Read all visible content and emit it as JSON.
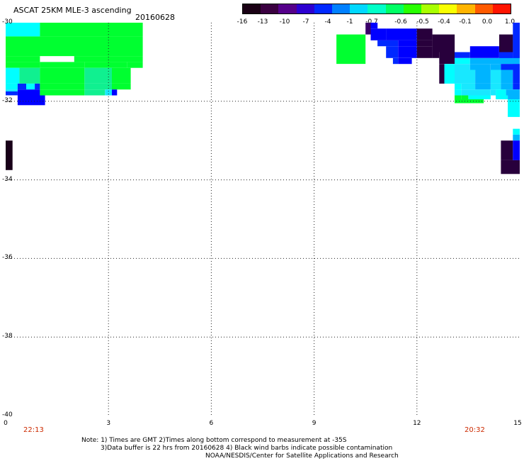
{
  "header": {
    "title": "ASCAT 25KM MLE-3 ascending",
    "date": "20160628"
  },
  "colorbar": {
    "labels": [
      "-16",
      "-13",
      "-10",
      "-7",
      "-4",
      "-1",
      "-0.7",
      "-0.6",
      "-0.5",
      "-0.4",
      "-0.1",
      "0.0",
      "1.0"
    ],
    "colors": [
      "#1a0014",
      "#3a0040",
      "#55008a",
      "#2c00d0",
      "#0028ff",
      "#0080ff",
      "#00d8ff",
      "#00ffc8",
      "#00ff64",
      "#28ff00",
      "#a8ff00",
      "#f8ff00",
      "#ffb400",
      "#ff5a00",
      "#ff1400"
    ]
  },
  "map": {
    "lat_range": [
      -40,
      -30
    ],
    "lon_range": [
      0,
      15
    ],
    "lat_labels": [
      "-30",
      "-32",
      "-34",
      "-36",
      "-38",
      "-40"
    ],
    "lon_labels": [
      "0",
      "3",
      "6",
      "9",
      "12",
      "15"
    ],
    "grid": "dotted",
    "time_left": "22:13",
    "time_right": "20:32",
    "colors": {
      "green": "#00ff30",
      "mint": "#10f090",
      "cyan": "#00ffff",
      "lightcyan": "#18e8ff",
      "skyblue": "#00b4ff",
      "blue": "#0028ff",
      "deepblue": "#0000ff",
      "purple": "#3a006a",
      "darkpurple": "#28003c",
      "nearblack": "#180018"
    },
    "cells": [
      {
        "lon": [
          0,
          1.0
        ],
        "lat": [
          -30.0,
          -30.35
        ],
        "color": "cyan"
      },
      {
        "lon": [
          1.0,
          4.0
        ],
        "lat": [
          -30.0,
          -30.35
        ],
        "color": "green"
      },
      {
        "lon": [
          0,
          4.0
        ],
        "lat": [
          -30.35,
          -30.85
        ],
        "color": "green"
      },
      {
        "lon": [
          0,
          1.0
        ],
        "lat": [
          -30.85,
          -31.0
        ],
        "color": "green"
      },
      {
        "lon": [
          2.0,
          4.0
        ],
        "lat": [
          -30.85,
          -31.0
        ],
        "color": "green"
      },
      {
        "lon": [
          0,
          1.0
        ],
        "lat": [
          -31.0,
          -31.15
        ],
        "color": "green"
      },
      {
        "lon": [
          1.0,
          2.3
        ],
        "lat": [
          -31.0,
          -31.15
        ],
        "color": "green"
      },
      {
        "lon": [
          2.3,
          3.55
        ],
        "lat": [
          -31.0,
          -31.15
        ],
        "color": "green"
      },
      {
        "lon": [
          3.55,
          4.0
        ],
        "lat": [
          -31.0,
          -31.15
        ],
        "color": "green"
      },
      {
        "lon": [
          0,
          0.4
        ],
        "lat": [
          -31.15,
          -31.55
        ],
        "color": "cyan"
      },
      {
        "lon": [
          0.4,
          1.0
        ],
        "lat": [
          -31.15,
          -31.55
        ],
        "color": "mint"
      },
      {
        "lon": [
          1.0,
          2.3
        ],
        "lat": [
          -31.15,
          -31.55
        ],
        "color": "green"
      },
      {
        "lon": [
          2.3,
          3.1
        ],
        "lat": [
          -31.15,
          -31.55
        ],
        "color": "mint"
      },
      {
        "lon": [
          3.1,
          3.65
        ],
        "lat": [
          -31.15,
          -31.55
        ],
        "color": "green"
      },
      {
        "lon": [
          0,
          0.35
        ],
        "lat": [
          -31.55,
          -31.7
        ],
        "color": "cyan"
      },
      {
        "lon": [
          0.35,
          0.6
        ],
        "lat": [
          -31.55,
          -31.7
        ],
        "color": "blue"
      },
      {
        "lon": [
          0.6,
          0.85
        ],
        "lat": [
          -31.55,
          -31.7
        ],
        "color": "cyan"
      },
      {
        "lon": [
          0.85,
          1.0
        ],
        "lat": [
          -31.55,
          -31.7
        ],
        "color": "blue"
      },
      {
        "lon": [
          1.0,
          2.3
        ],
        "lat": [
          -31.55,
          -31.7
        ],
        "color": "green"
      },
      {
        "lon": [
          2.3,
          3.1
        ],
        "lat": [
          -31.55,
          -31.7
        ],
        "color": "mint"
      },
      {
        "lon": [
          3.1,
          3.65
        ],
        "lat": [
          -31.55,
          -31.7
        ],
        "color": "green"
      },
      {
        "lon": [
          0,
          0.35
        ],
        "lat": [
          -31.7,
          -31.75
        ],
        "color": "lightcyan"
      },
      {
        "lon": [
          0,
          0.35
        ],
        "lat": [
          -31.75,
          -31.85
        ],
        "color": "blue"
      },
      {
        "lon": [
          0.35,
          1.0
        ],
        "lat": [
          -31.7,
          -31.85
        ],
        "color": "deepblue"
      },
      {
        "lon": [
          1.0,
          2.3
        ],
        "lat": [
          -31.7,
          -31.85
        ],
        "color": "green"
      },
      {
        "lon": [
          2.3,
          2.9
        ],
        "lat": [
          -31.7,
          -31.85
        ],
        "color": "mint"
      },
      {
        "lon": [
          2.9,
          3.1
        ],
        "lat": [
          -31.7,
          -31.85
        ],
        "color": "lightcyan"
      },
      {
        "lon": [
          3.1,
          3.25
        ],
        "lat": [
          -31.7,
          -31.85
        ],
        "color": "deepblue"
      },
      {
        "lon": [
          0.35,
          1.15
        ],
        "lat": [
          -31.85,
          -32.1
        ],
        "color": "deepblue"
      },
      {
        "lon": [
          0,
          0.2
        ],
        "lat": [
          -33.0,
          -33.75
        ],
        "color": "nearblack"
      },
      {
        "lon": [
          9.65,
          10.5
        ],
        "lat": [
          -30.3,
          -31.05
        ],
        "color": "green"
      },
      {
        "lon": [
          10.5,
          10.65
        ],
        "lat": [
          -30.0,
          -30.3
        ],
        "color": "purple"
      },
      {
        "lon": [
          10.65,
          10.85
        ],
        "lat": [
          -30.0,
          -30.15
        ],
        "color": "deepblue"
      },
      {
        "lon": [
          10.65,
          11.1
        ],
        "lat": [
          -30.15,
          -30.45
        ],
        "color": "deepblue"
      },
      {
        "lon": [
          11.1,
          12.0
        ],
        "lat": [
          -30.15,
          -30.45
        ],
        "color": "deepblue"
      },
      {
        "lon": [
          12.0,
          12.45
        ],
        "lat": [
          -30.15,
          -30.45
        ],
        "color": "darkpurple"
      },
      {
        "lon": [
          10.85,
          11.45
        ],
        "lat": [
          -30.45,
          -30.6
        ],
        "color": "blue"
      },
      {
        "lon": [
          11.45,
          12.0
        ],
        "lat": [
          -30.45,
          -30.6
        ],
        "color": "deepblue"
      },
      {
        "lon": [
          12.0,
          12.45
        ],
        "lat": [
          -30.45,
          -30.6
        ],
        "color": "darkpurple"
      },
      {
        "lon": [
          12.45,
          13.1
        ],
        "lat": [
          -30.3,
          -30.75
        ],
        "color": "darkpurple"
      },
      {
        "lon": [
          11.1,
          11.45
        ],
        "lat": [
          -30.6,
          -30.9
        ],
        "color": "blue"
      },
      {
        "lon": [
          11.45,
          12.0
        ],
        "lat": [
          -30.6,
          -30.9
        ],
        "color": "deepblue"
      },
      {
        "lon": [
          12.0,
          12.45
        ],
        "lat": [
          -30.6,
          -30.9
        ],
        "color": "darkpurple"
      },
      {
        "lon": [
          12.45,
          12.65
        ],
        "lat": [
          -30.75,
          -30.9
        ],
        "color": "darkpurple"
      },
      {
        "lon": [
          11.3,
          11.45
        ],
        "lat": [
          -30.9,
          -31.05
        ],
        "color": "blue"
      },
      {
        "lon": [
          11.45,
          11.85
        ],
        "lat": [
          -30.9,
          -31.05
        ],
        "color": "deepblue"
      },
      {
        "lon": [
          12.65,
          13.1
        ],
        "lat": [
          -30.75,
          -31.05
        ],
        "color": "darkpurple"
      },
      {
        "lon": [
          13.1,
          13.55
        ],
        "lat": [
          -30.75,
          -30.9
        ],
        "color": "blue"
      },
      {
        "lon": [
          13.55,
          14.4
        ],
        "lat": [
          -30.6,
          -30.9
        ],
        "color": "deepblue"
      },
      {
        "lon": [
          14.4,
          14.8
        ],
        "lat": [
          -30.3,
          -30.75
        ],
        "color": "darkpurple"
      },
      {
        "lon": [
          14.4,
          14.8
        ],
        "lat": [
          -30.75,
          -31.05
        ],
        "color": "blue"
      },
      {
        "lon": [
          14.8,
          15.0
        ],
        "lat": [
          -30.0,
          -31.05
        ],
        "color": "blue"
      },
      {
        "lon": [
          13.1,
          13.55
        ],
        "lat": [
          -30.9,
          -31.05
        ],
        "color": "cyan"
      },
      {
        "lon": [
          13.55,
          15.0
        ],
        "lat": [
          -30.9,
          -31.05
        ],
        "color": "skyblue"
      },
      {
        "lon": [
          12.65,
          12.8
        ],
        "lat": [
          -31.05,
          -31.2
        ],
        "color": "darkpurple"
      },
      {
        "lon": [
          12.8,
          13.1
        ],
        "lat": [
          -31.05,
          -31.2
        ],
        "color": "cyan"
      },
      {
        "lon": [
          13.1,
          13.55
        ],
        "lat": [
          -31.05,
          -31.2
        ],
        "color": "lightcyan"
      },
      {
        "lon": [
          13.55,
          14.15
        ],
        "lat": [
          -31.05,
          -31.2
        ],
        "color": "skyblue"
      },
      {
        "lon": [
          14.15,
          14.45
        ],
        "lat": [
          -31.05,
          -31.2
        ],
        "color": "skyblue"
      },
      {
        "lon": [
          14.45,
          15.0
        ],
        "lat": [
          -31.05,
          -31.2
        ],
        "color": "blue"
      },
      {
        "lon": [
          12.65,
          12.8
        ],
        "lat": [
          -31.2,
          -31.55
        ],
        "color": "darkpurple"
      },
      {
        "lon": [
          12.8,
          13.1
        ],
        "lat": [
          -31.2,
          -31.55
        ],
        "color": "cyan"
      },
      {
        "lon": [
          13.1,
          13.7
        ],
        "lat": [
          -31.2,
          -31.55
        ],
        "color": "lightcyan"
      },
      {
        "lon": [
          13.7,
          14.15
        ],
        "lat": [
          -31.2,
          -31.55
        ],
        "color": "skyblue"
      },
      {
        "lon": [
          14.15,
          14.45
        ],
        "lat": [
          -31.2,
          -31.55
        ],
        "color": "lightcyan"
      },
      {
        "lon": [
          14.45,
          14.8
        ],
        "lat": [
          -31.2,
          -31.55
        ],
        "color": "skyblue"
      },
      {
        "lon": [
          14.8,
          15.0
        ],
        "lat": [
          -31.2,
          -31.55
        ],
        "color": "blue"
      },
      {
        "lon": [
          13.1,
          13.3
        ],
        "lat": [
          -31.55,
          -31.7
        ],
        "color": "cyan"
      },
      {
        "lon": [
          13.3,
          13.7
        ],
        "lat": [
          -31.55,
          -31.7
        ],
        "color": "lightcyan"
      },
      {
        "lon": [
          13.7,
          14.15
        ],
        "lat": [
          -31.55,
          -31.7
        ],
        "color": "skyblue"
      },
      {
        "lon": [
          14.15,
          14.45
        ],
        "lat": [
          -31.55,
          -31.7
        ],
        "color": "lightcyan"
      },
      {
        "lon": [
          14.45,
          14.8
        ],
        "lat": [
          -31.55,
          -31.7
        ],
        "color": "skyblue"
      },
      {
        "lon": [
          14.8,
          15.0
        ],
        "lat": [
          -31.55,
          -31.7
        ],
        "color": "blue"
      },
      {
        "lon": [
          13.1,
          13.3
        ],
        "lat": [
          -31.7,
          -31.85
        ],
        "color": "cyan"
      },
      {
        "lon": [
          13.3,
          14.15
        ],
        "lat": [
          -31.7,
          -31.85
        ],
        "color": "lightcyan"
      },
      {
        "lon": [
          14.15,
          14.3
        ],
        "lat": [
          -31.7,
          -31.85
        ],
        "color": "lightcyan"
      },
      {
        "lon": [
          14.3,
          14.6
        ],
        "lat": [
          -31.7,
          -31.85
        ],
        "color": "cyan"
      },
      {
        "lon": [
          14.6,
          15.0
        ],
        "lat": [
          -31.7,
          -31.85
        ],
        "color": "skyblue"
      },
      {
        "lon": [
          13.1,
          13.3
        ],
        "lat": [
          -31.85,
          -31.95
        ],
        "color": "green"
      },
      {
        "lon": [
          13.3,
          13.5
        ],
        "lat": [
          -31.85,
          -31.95
        ],
        "color": "green"
      },
      {
        "lon": [
          13.5,
          14.15
        ],
        "lat": [
          -31.85,
          -31.95
        ],
        "color": "cyan"
      },
      {
        "lon": [
          14.3,
          14.65
        ],
        "lat": [
          -31.85,
          -31.95
        ],
        "color": "cyan"
      },
      {
        "lon": [
          14.65,
          15.0
        ],
        "lat": [
          -31.85,
          -31.95
        ],
        "color": "skyblue"
      },
      {
        "lon": [
          13.1,
          13.95
        ],
        "lat": [
          -31.95,
          -32.05
        ],
        "color": "green"
      },
      {
        "lon": [
          14.65,
          15.0
        ],
        "lat": [
          -31.95,
          -32.4
        ],
        "color": "cyan"
      },
      {
        "lon": [
          14.8,
          15.0
        ],
        "lat": [
          -32.7,
          -32.85
        ],
        "color": "cyan"
      },
      {
        "lon": [
          14.8,
          15.0
        ],
        "lat": [
          -32.85,
          -33.0
        ],
        "color": "skyblue"
      },
      {
        "lon": [
          14.45,
          14.8
        ],
        "lat": [
          -33.0,
          -33.5
        ],
        "color": "darkpurple"
      },
      {
        "lon": [
          14.8,
          15.0
        ],
        "lat": [
          -33.0,
          -33.5
        ],
        "color": "deepblue"
      },
      {
        "lon": [
          14.45,
          15.0
        ],
        "lat": [
          -33.5,
          -33.85
        ],
        "color": "darkpurple"
      }
    ]
  },
  "footer": {
    "note_line1": "Note: 1) Times are GMT 2)Times along bottom correspond to measurement at -35S",
    "note_line2": "3)Data buffer is 22 hrs from 20160628 4) Black wind barbs indicate possible contamination",
    "note_line3": "NOAA/NESDIS/Center for Satellite Applications and Research"
  }
}
